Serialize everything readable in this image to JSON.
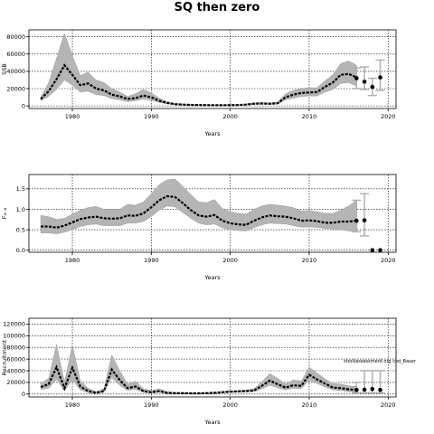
{
  "title": "SQ then zero",
  "chart_data": [
    {
      "type": "line",
      "xlabel": "Years",
      "ylabel": "SSB",
      "xlim": [
        1974.5,
        2021
      ],
      "ylim": [
        -3000,
        88000
      ],
      "x_ticks": [
        1980,
        1990,
        2000,
        2010,
        2020
      ],
      "y_ticks": [
        0,
        20000,
        40000,
        60000,
        80000
      ],
      "y_tick_labels": [
        "0",
        "20000",
        "40000",
        "60000",
        "80000"
      ],
      "grid": true,
      "series": [
        {
          "x": [
            1976,
            1977,
            1978,
            1979,
            1980,
            1981,
            1982,
            1983,
            1984,
            1985,
            1986,
            1987,
            1988,
            1989,
            1990,
            1991,
            1992,
            1993,
            1994,
            1995,
            1996,
            1997,
            1998,
            1999,
            2000,
            2001,
            2002,
            2003,
            2004,
            2005,
            2006,
            2007,
            2008,
            2009,
            2010,
            2011,
            2012,
            2013,
            2014,
            2015,
            2016
          ],
          "median": [
            8000,
            17000,
            31000,
            47000,
            36000,
            24000,
            26000,
            20000,
            18000,
            13000,
            11000,
            8000,
            9000,
            12000,
            10000,
            6000,
            3500,
            2000,
            1500,
            1200,
            1000,
            900,
            800,
            800,
            900,
            1000,
            1500,
            2500,
            2800,
            2500,
            3000,
            10000,
            13000,
            15000,
            15500,
            16000,
            22000,
            27000,
            36000,
            37000,
            33000
          ],
          "lower": [
            6000,
            11000,
            19000,
            30000,
            24000,
            16000,
            17000,
            13000,
            12000,
            8500,
            7000,
            5000,
            6000,
            8000,
            6500,
            4000,
            2300,
            1400,
            1000,
            800,
            700,
            600,
            500,
            500,
            600,
            700,
            1000,
            1700,
            1900,
            1700,
            2000,
            7000,
            9000,
            11000,
            11500,
            11500,
            16000,
            19000,
            26000,
            27000,
            23000
          ],
          "upper": [
            10000,
            27000,
            55000,
            84000,
            58000,
            35000,
            39000,
            30000,
            27000,
            20000,
            16000,
            11000,
            14000,
            19000,
            15000,
            9000,
            5000,
            3000,
            2200,
            1800,
            1500,
            1300,
            1200,
            1200,
            1300,
            1500,
            2200,
            3500,
            4000,
            3500,
            4500,
            14000,
            18000,
            20000,
            21000,
            21000,
            29000,
            36000,
            49000,
            52000,
            47000
          ]
        }
      ],
      "points": [
        {
          "x": 2016,
          "y": 32000,
          "lo": 20000,
          "hi": 44000
        },
        {
          "x": 2017,
          "y": 28000,
          "lo": 19000,
          "hi": 45000
        },
        {
          "x": 2018,
          "y": 22000,
          "lo": 12000,
          "hi": 32000
        },
        {
          "x": 2019,
          "y": 33000,
          "lo": 18000,
          "hi": 53000
        }
      ]
    },
    {
      "type": "line",
      "xlabel": "Years",
      "ylabel": "F₄₋₈",
      "xlim": [
        1974.5,
        2021
      ],
      "ylim": [
        -0.05,
        1.85
      ],
      "x_ticks": [
        1980,
        1990,
        2000,
        2010,
        2020
      ],
      "y_ticks": [
        0,
        0.5,
        1.0,
        1.5
      ],
      "y_tick_labels": [
        "0.0",
        "0.5",
        "1.0",
        "1.5"
      ],
      "grid": true,
      "series": [
        {
          "x": [
            1976,
            1977,
            1978,
            1979,
            1980,
            1981,
            1982,
            1983,
            1984,
            1985,
            1986,
            1987,
            1988,
            1989,
            1990,
            1991,
            1992,
            1993,
            1994,
            1995,
            1996,
            1997,
            1998,
            1999,
            2000,
            2001,
            2002,
            2003,
            2004,
            2005,
            2006,
            2007,
            2008,
            2009,
            2010,
            2011,
            2012,
            2013,
            2014,
            2015,
            2016
          ],
          "median": [
            0.58,
            0.58,
            0.55,
            0.6,
            0.68,
            0.76,
            0.8,
            0.82,
            0.78,
            0.77,
            0.78,
            0.85,
            0.84,
            0.9,
            1.05,
            1.22,
            1.32,
            1.3,
            1.15,
            0.98,
            0.85,
            0.82,
            0.86,
            0.72,
            0.66,
            0.63,
            0.62,
            0.72,
            0.8,
            0.85,
            0.83,
            0.82,
            0.78,
            0.72,
            0.73,
            0.71,
            0.67,
            0.67,
            0.7,
            0.7,
            0.72
          ],
          "lower": [
            0.42,
            0.42,
            0.4,
            0.44,
            0.5,
            0.58,
            0.62,
            0.64,
            0.6,
            0.6,
            0.6,
            0.66,
            0.66,
            0.7,
            0.82,
            0.98,
            1.08,
            1.06,
            0.92,
            0.78,
            0.66,
            0.62,
            0.64,
            0.55,
            0.5,
            0.48,
            0.47,
            0.55,
            0.62,
            0.66,
            0.65,
            0.64,
            0.6,
            0.56,
            0.57,
            0.56,
            0.53,
            0.52,
            0.5,
            0.47,
            0.45
          ],
          "upper": [
            0.85,
            0.82,
            0.75,
            0.78,
            0.88,
            0.98,
            1.04,
            1.07,
            1.0,
            1.0,
            1.0,
            1.12,
            1.1,
            1.18,
            1.38,
            1.6,
            1.72,
            1.74,
            1.56,
            1.36,
            1.18,
            1.16,
            1.24,
            1.02,
            0.94,
            0.9,
            0.88,
            1.0,
            1.08,
            1.12,
            1.1,
            1.08,
            1.04,
            0.96,
            0.97,
            0.94,
            0.9,
            0.9,
            0.98,
            1.08,
            1.22
          ]
        }
      ],
      "points": [
        {
          "x": 2016,
          "y": 0.72,
          "lo": 0.45,
          "hi": 1.22
        },
        {
          "x": 2017,
          "y": 0.73,
          "lo": 0.35,
          "hi": 1.38
        },
        {
          "x": 2018,
          "y": 0.0,
          "lo": 0.0,
          "hi": 0.0
        },
        {
          "x": 2019,
          "y": 0.0,
          "lo": 0.0,
          "hi": 0.0
        }
      ]
    },
    {
      "type": "line",
      "xlabel": "Years",
      "ylabel": "Recruitment",
      "xlim": [
        1974.5,
        2021
      ],
      "ylim": [
        -5000,
        130000
      ],
      "x_ticks": [
        1980,
        1990,
        2000,
        2010,
        2020
      ],
      "y_ticks": [
        0,
        20000,
        40000,
        60000,
        80000,
        100000,
        120000
      ],
      "y_tick_labels": [
        "0",
        "20000",
        "40000",
        "60000",
        "80000",
        "100000",
        "120000"
      ],
      "grid": true,
      "annotation": "stockassessment.org cod_Baser",
      "series": [
        {
          "x": [
            1976,
            1977,
            1978,
            1979,
            1980,
            1981,
            1982,
            1983,
            1984,
            1985,
            1986,
            1987,
            1988,
            1989,
            1990,
            1991,
            1992,
            1993,
            1994,
            1995,
            1996,
            1997,
            1998,
            1999,
            2000,
            2001,
            2002,
            2003,
            2004,
            2005,
            2006,
            2007,
            2008,
            2009,
            2010,
            2011,
            2012,
            2013,
            2014,
            2015,
            2016
          ],
          "median": [
            12000,
            17000,
            46000,
            10000,
            45000,
            13000,
            5000,
            2000,
            5000,
            42000,
            24000,
            10000,
            13000,
            5000,
            3000,
            5000,
            2000,
            1500,
            1500,
            1200,
            1200,
            1500,
            2000,
            3000,
            4000,
            4500,
            5000,
            6000,
            14000,
            23000,
            17000,
            11000,
            15000,
            14000,
            33000,
            25000,
            18000,
            11000,
            10000,
            8000,
            7000
          ],
          "lower": [
            8000,
            10000,
            25000,
            5000,
            25000,
            7000,
            2500,
            1000,
            3000,
            28000,
            15000,
            6000,
            8000,
            3000,
            1500,
            3000,
            1000,
            800,
            800,
            700,
            700,
            900,
            1300,
            2000,
            2800,
            3200,
            3500,
            4000,
            9000,
            15000,
            11000,
            7000,
            10000,
            9000,
            24000,
            18000,
            12000,
            7000,
            6000,
            4000,
            3000
          ],
          "upper": [
            18000,
            27000,
            85000,
            20000,
            84000,
            23000,
            10000,
            4000,
            9000,
            67000,
            40000,
            17000,
            22000,
            9000,
            6000,
            9000,
            4000,
            2500,
            2500,
            2000,
            2000,
            2400,
            3000,
            4500,
            5500,
            6000,
            7000,
            9000,
            21000,
            35000,
            27000,
            17000,
            24000,
            22000,
            46000,
            36000,
            26000,
            18000,
            17000,
            14000,
            13000
          ]
        }
      ],
      "points": [
        {
          "x": 2016,
          "y": 7000,
          "lo": 2000,
          "hi": 20000
        },
        {
          "x": 2017,
          "y": 7500,
          "lo": 2000,
          "hi": 40000
        },
        {
          "x": 2018,
          "y": 8500,
          "lo": 2000,
          "hi": 40000
        },
        {
          "x": 2019,
          "y": 7000,
          "lo": 2000,
          "hi": 40000
        }
      ]
    }
  ]
}
